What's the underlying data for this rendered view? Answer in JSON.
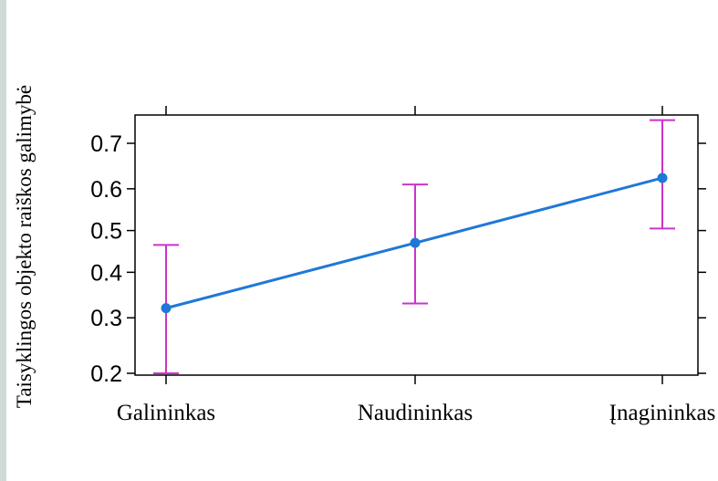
{
  "chart_data": {
    "type": "line",
    "title": "",
    "xlabel": "",
    "ylabel": "Taisyklingos objekto raiškos galimybė",
    "categories": [
      "Galininkas",
      "Naudininkas",
      "Įnagininkas"
    ],
    "series": [
      {
        "values": [
          0.32,
          0.47,
          0.625
        ],
        "lower": [
          0.2,
          0.33,
          0.505
        ],
        "upper": [
          0.465,
          0.61,
          0.745
        ],
        "color": "#1f78d8",
        "error_bar_color": "#cc33cc"
      }
    ],
    "yticks": [
      0.2,
      0.3,
      0.4,
      0.5,
      0.6,
      0.7
    ],
    "ytick_labels": [
      "0.2",
      "0.3",
      "0.4",
      "0.5",
      "0.6",
      "0.7"
    ],
    "ylim": [
      0.2,
      0.7
    ],
    "y_scale": "logit",
    "grid": false
  }
}
